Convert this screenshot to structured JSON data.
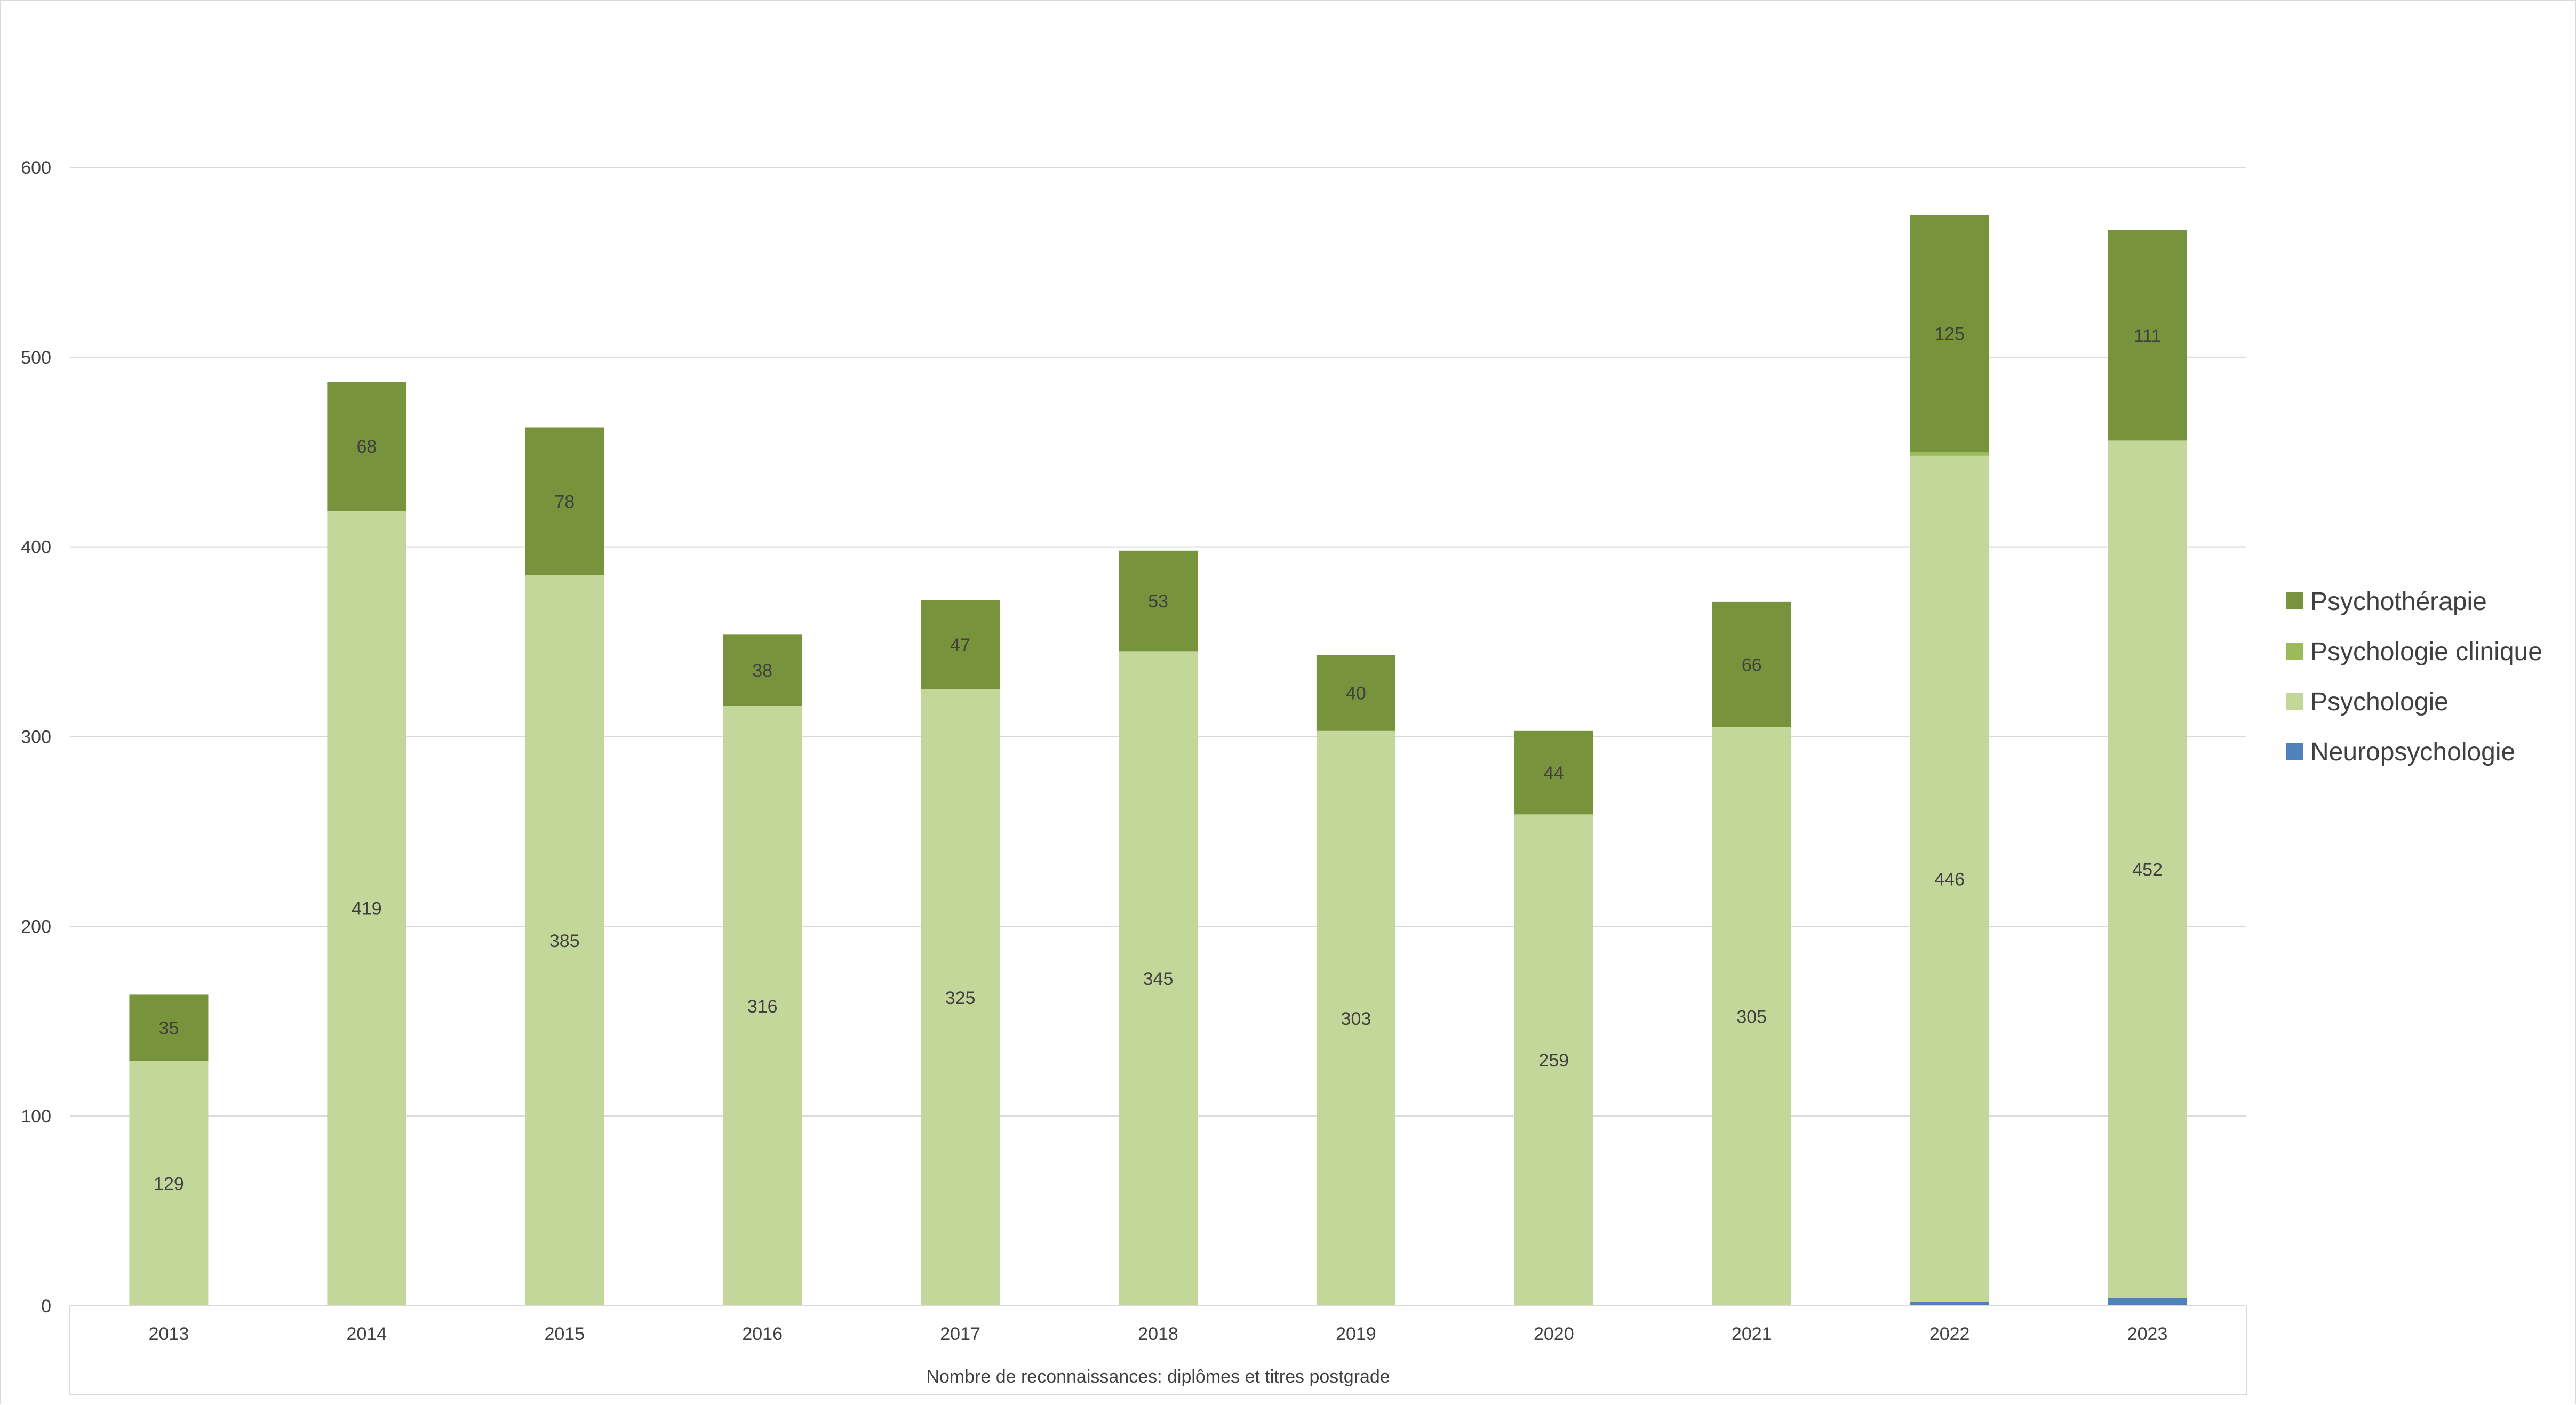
{
  "chart_data": {
    "type": "bar",
    "stacked": true,
    "title": "",
    "xlabel": "Nombre de reconnaissances: diplômes et titres postgrade",
    "ylabel": "",
    "ylim": [
      0,
      600
    ],
    "yticks": [
      0,
      100,
      200,
      300,
      400,
      500,
      600
    ],
    "grid": true,
    "legend_position": "right",
    "categories": [
      "2013",
      "2014",
      "2015",
      "2016",
      "2017",
      "2018",
      "2019",
      "2020",
      "2021",
      "2022",
      "2023"
    ],
    "series": [
      {
        "name": "Neuropsychologie",
        "color": "#4f81bd",
        "values": [
          0,
          0,
          0,
          0,
          0,
          0,
          0,
          0,
          0,
          2,
          4
        ]
      },
      {
        "name": "Psychologie",
        "color": "#c4d79b",
        "values": [
          129,
          419,
          385,
          316,
          325,
          345,
          303,
          259,
          305,
          446,
          452
        ]
      },
      {
        "name": "Psychologie clinique",
        "color": "#9bbb59",
        "values": [
          0,
          0,
          0,
          0,
          0,
          0,
          0,
          0,
          0,
          2,
          0
        ]
      },
      {
        "name": "Psychothérapie",
        "color": "#77933c",
        "values": [
          35,
          68,
          78,
          38,
          47,
          53,
          40,
          44,
          66,
          125,
          111
        ]
      }
    ],
    "data_labels": {
      "Psychologie": [
        "129",
        "419",
        "385",
        "316",
        "325",
        "345",
        "303",
        "259",
        "305",
        "446",
        "452"
      ],
      "Psychothérapie": [
        "35",
        "68",
        "78",
        "38",
        "47",
        "53",
        "40",
        "44",
        "66",
        "125",
        "111"
      ]
    },
    "legend_order": [
      "Psychothérapie",
      "Psychologie clinique",
      "Psychologie",
      "Neuropsychologie"
    ]
  }
}
